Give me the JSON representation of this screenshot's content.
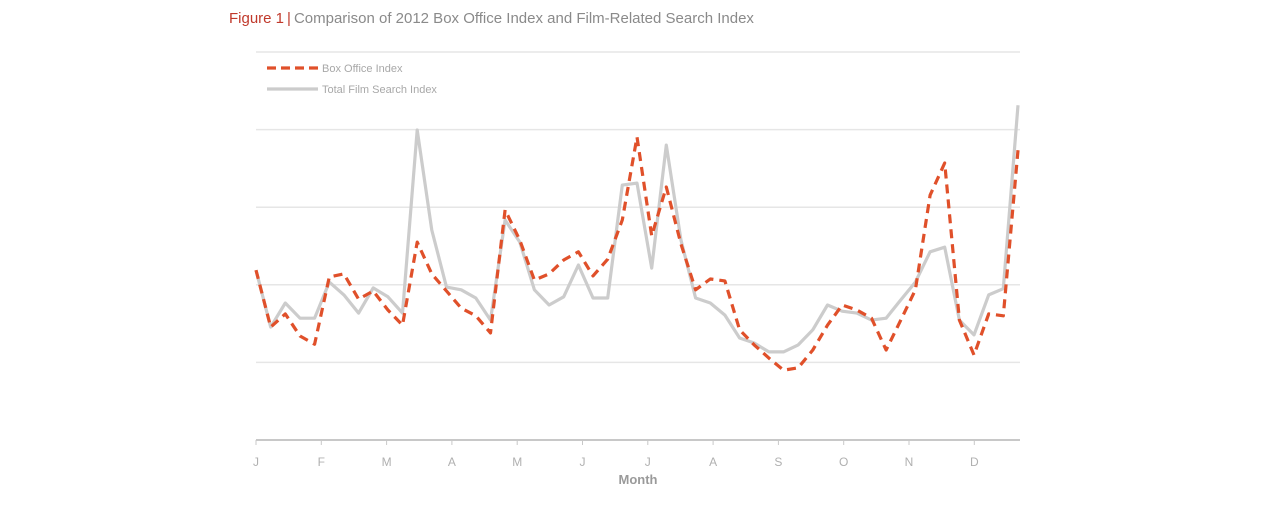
{
  "figure": {
    "label": "Figure 1",
    "separator": "|",
    "caption": "Comparison of 2012 Box Office Index and Film-Related Search Index"
  },
  "colors": {
    "box_office": "#e0502a",
    "search": "#cccccc",
    "grid": "#e6e6e6",
    "axis": "#c8c8c8",
    "figure_label": "#c0392b"
  },
  "chart_data": {
    "type": "line",
    "title": "Comparison of 2012 Box Office Index and Film-Related Search Index",
    "xlabel": "Month",
    "ylabel": "",
    "x_tick_labels": [
      "J",
      "F",
      "M",
      "A",
      "M",
      "J",
      "J",
      "A",
      "S",
      "O",
      "N",
      "D"
    ],
    "y_axis_labels_visible": false,
    "ylim": [
      0,
      100
    ],
    "grid": true,
    "gridline_values": [
      20,
      40,
      60,
      80,
      100
    ],
    "legend_position": "top-left",
    "x": [
      1,
      2,
      3,
      4,
      5,
      6,
      7,
      8,
      9,
      10,
      11,
      12,
      13,
      14,
      15,
      16,
      17,
      18,
      19,
      20,
      21,
      22,
      23,
      24,
      25,
      26,
      27,
      28,
      29,
      30,
      31,
      32,
      33,
      34,
      35,
      36,
      37,
      38,
      39,
      40,
      41,
      42,
      43,
      44,
      45,
      46,
      47,
      48,
      49,
      50,
      51,
      52,
      53
    ],
    "x_unit": "week (approx.)",
    "series": [
      {
        "name": "Box Office Index",
        "style": "dashed",
        "values": [
          43.8,
          29.1,
          32.5,
          26.8,
          24.7,
          42.0,
          42.8,
          36.3,
          38.4,
          33.5,
          29.6,
          51.0,
          42.8,
          38.4,
          34.0,
          32.0,
          27.6,
          59.3,
          51.5,
          41.2,
          42.8,
          46.4,
          48.5,
          42.3,
          46.6,
          56.7,
          78.1,
          52.6,
          65.2,
          50.5,
          38.7,
          41.5,
          41.0,
          28.4,
          24.5,
          21.1,
          18.0,
          18.6,
          23.2,
          29.6,
          34.8,
          33.5,
          31.4,
          23.2,
          30.9,
          38.7,
          63.1,
          71.4,
          30.9,
          21.9,
          32.5,
          32.0,
          74.7
        ]
      },
      {
        "name": "Total Film Search Index",
        "style": "solid",
        "values": [
          43.8,
          29.1,
          35.3,
          31.4,
          31.4,
          40.7,
          37.4,
          32.7,
          39.2,
          36.9,
          32.7,
          79.9,
          54.1,
          39.4,
          38.7,
          36.6,
          30.9,
          56.7,
          51.0,
          38.7,
          34.8,
          36.9,
          45.1,
          36.6,
          36.6,
          65.7,
          66.2,
          44.3,
          76.0,
          51.5,
          36.6,
          35.3,
          32.2,
          26.3,
          25.0,
          22.7,
          22.7,
          24.5,
          28.4,
          34.8,
          33.2,
          32.7,
          30.9,
          31.4,
          36.1,
          40.7,
          48.5,
          49.7,
          30.9,
          27.1,
          37.4,
          39.0,
          86.3
        ]
      }
    ]
  },
  "legend": {
    "items": [
      {
        "label": "Box Office Index"
      },
      {
        "label": "Total Film Search Index"
      }
    ]
  },
  "axis": {
    "x_title": "Month",
    "months": [
      "J",
      "F",
      "M",
      "A",
      "M",
      "J",
      "J",
      "A",
      "S",
      "O",
      "N",
      "D"
    ]
  }
}
